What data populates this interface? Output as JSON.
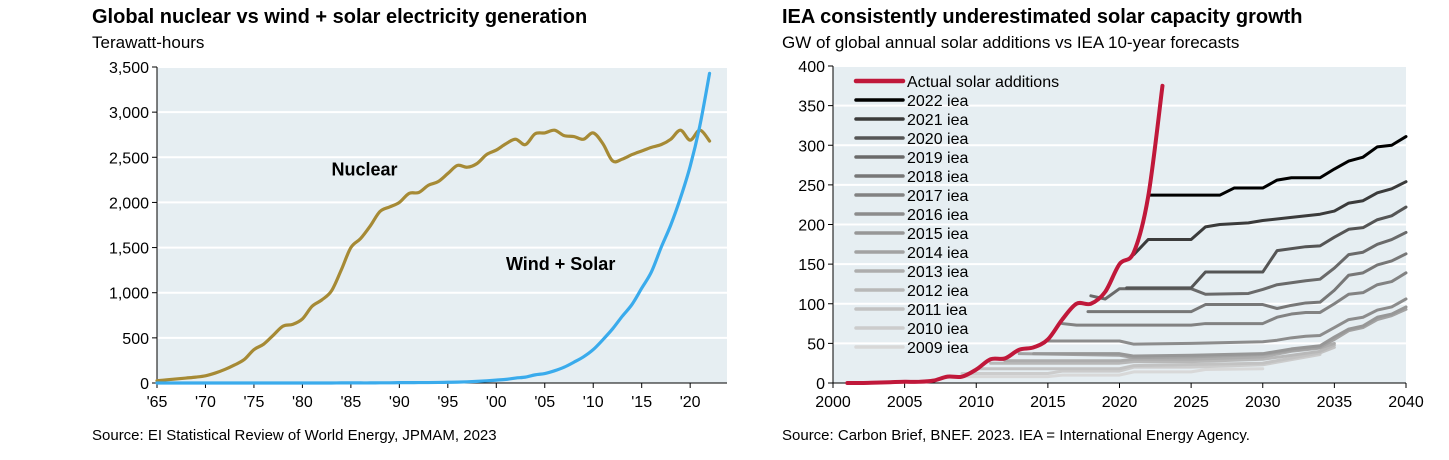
{
  "colors": {
    "plot_bg": "#e6eef2",
    "nuclear": "#a68a35",
    "wind_solar": "#3aabec",
    "actual_solar": "#c0183a"
  },
  "chart_data": [
    {
      "type": "line",
      "title": "Global nuclear vs wind + solar electricity generation",
      "subtitle": "Terawatt-hours",
      "source": "Source: EI Statistical Review of World Energy, JPMAM, 2023",
      "xlabel": "",
      "ylabel": "Terawatt-hours",
      "xlim": [
        1965,
        2023.8
      ],
      "ylim": [
        0,
        3500
      ],
      "yticks": [
        0,
        500,
        1000,
        1500,
        2000,
        2500,
        3000,
        3500
      ],
      "ytick_labels": [
        "0",
        "500",
        "1,000",
        "1,500",
        "2,000",
        "2,500",
        "3,000",
        "3,500"
      ],
      "xticks": [
        1965,
        1970,
        1975,
        1980,
        1985,
        1990,
        1995,
        2000,
        2005,
        2010,
        2015,
        2020
      ],
      "xtick_labels": [
        "'65",
        "'70",
        "'75",
        "'80",
        "'85",
        "'90",
        "'95",
        "'00",
        "'05",
        "'10",
        "'15",
        "'20"
      ],
      "grid": true,
      "annotations": [
        {
          "text": "Nuclear",
          "x": 1983,
          "y": 2300
        },
        {
          "text": "Wind + Solar",
          "x": 2001,
          "y": 1250
        }
      ],
      "x": [
        1965,
        1966,
        1967,
        1968,
        1969,
        1970,
        1971,
        1972,
        1973,
        1974,
        1975,
        1976,
        1977,
        1978,
        1979,
        1980,
        1981,
        1982,
        1983,
        1984,
        1985,
        1986,
        1987,
        1988,
        1989,
        1990,
        1991,
        1992,
        1993,
        1994,
        1995,
        1996,
        1997,
        1998,
        1999,
        2000,
        2001,
        2002,
        2003,
        2004,
        2005,
        2006,
        2007,
        2008,
        2009,
        2010,
        2011,
        2012,
        2013,
        2014,
        2015,
        2016,
        2017,
        2018,
        2019,
        2020,
        2021,
        2022
      ],
      "series": [
        {
          "name": "Nuclear",
          "color_key": "nuclear",
          "values": [
            25,
            35,
            45,
            55,
            65,
            80,
            110,
            150,
            200,
            260,
            370,
            430,
            530,
            630,
            650,
            710,
            850,
            920,
            1020,
            1250,
            1500,
            1600,
            1740,
            1900,
            1950,
            2000,
            2100,
            2110,
            2190,
            2230,
            2320,
            2410,
            2390,
            2430,
            2530,
            2580,
            2650,
            2700,
            2640,
            2760,
            2770,
            2800,
            2740,
            2730,
            2700,
            2770,
            2650,
            2460,
            2480,
            2530,
            2570,
            2610,
            2640,
            2700,
            2800,
            2690,
            2800,
            2680
          ]
        },
        {
          "name": "Wind + Solar",
          "color_key": "wind_solar",
          "values": [
            0,
            0,
            0,
            0,
            0,
            0,
            0,
            0,
            0,
            0,
            0,
            0,
            0,
            0,
            0,
            0,
            0,
            0,
            0,
            1,
            1,
            1,
            1,
            2,
            2,
            4,
            4,
            5,
            5,
            6,
            8,
            10,
            13,
            18,
            24,
            32,
            40,
            55,
            65,
            90,
            105,
            135,
            175,
            230,
            290,
            370,
            480,
            600,
            740,
            870,
            1050,
            1230,
            1500,
            1750,
            2050,
            2400,
            2850,
            3430
          ]
        }
      ]
    },
    {
      "type": "line",
      "title": "IEA consistently underestimated solar capacity growth",
      "subtitle": "GW of global annual solar additions vs IEA 10-year forecasts",
      "source": "Source: Carbon Brief, BNEF. 2023. IEA = International Energy Agency.",
      "xlabel": "",
      "ylabel": "GW",
      "xlim": [
        2000,
        2040
      ],
      "ylim": [
        0,
        400
      ],
      "yticks": [
        0,
        50,
        100,
        150,
        200,
        250,
        300,
        350,
        400
      ],
      "xticks": [
        2000,
        2005,
        2010,
        2015,
        2020,
        2025,
        2030,
        2035,
        2040
      ],
      "grid": true,
      "legend_position": "top-left",
      "series": [
        {
          "name": "Actual solar additions",
          "color": "#c0183a",
          "width": 4,
          "points": [
            [
              2001,
              0
            ],
            [
              2002,
              0
            ],
            [
              2003,
              0.5
            ],
            [
              2004,
              1
            ],
            [
              2005,
              1.5
            ],
            [
              2006,
              1.5
            ],
            [
              2007,
              3
            ],
            [
              2008,
              8
            ],
            [
              2009,
              8
            ],
            [
              2010,
              17
            ],
            [
              2011,
              30
            ],
            [
              2012,
              31
            ],
            [
              2013,
              42
            ],
            [
              2014,
              45
            ],
            [
              2015,
              55
            ],
            [
              2016,
              80
            ],
            [
              2017,
              100
            ],
            [
              2018,
              100
            ],
            [
              2019,
              115
            ],
            [
              2020,
              150
            ],
            [
              2021,
              165
            ],
            [
              2022,
              235
            ],
            [
              2023,
              375
            ]
          ]
        },
        {
          "name": "2022 iea",
          "color": "#000000",
          "width": 3,
          "points": [
            [
              2022,
              237
            ],
            [
              2027,
              237
            ],
            [
              2028,
              246
            ],
            [
              2030,
              246
            ],
            [
              2031,
              256
            ],
            [
              2032,
              259
            ],
            [
              2034,
              259
            ],
            [
              2035,
              270
            ],
            [
              2036,
              280
            ],
            [
              2037,
              285
            ],
            [
              2038,
              298
            ],
            [
              2039,
              300
            ],
            [
              2040,
              311
            ]
          ]
        },
        {
          "name": "2021 iea",
          "color": "#3b3b3b",
          "width": 3,
          "points": [
            [
              2021,
              162
            ],
            [
              2022,
              181
            ],
            [
              2025,
              181
            ],
            [
              2026,
              197
            ],
            [
              2027,
              200
            ],
            [
              2029,
              202
            ],
            [
              2030,
              205
            ],
            [
              2032,
              209
            ],
            [
              2034,
              213
            ],
            [
              2035,
              217
            ],
            [
              2036,
              227
            ],
            [
              2037,
              230
            ],
            [
              2038,
              240
            ],
            [
              2039,
              245
            ],
            [
              2040,
              254
            ]
          ]
        },
        {
          "name": "2020 iea",
          "color": "#555555",
          "width": 3,
          "points": [
            [
              2020.5,
              120
            ],
            [
              2025,
              120
            ],
            [
              2026,
              140
            ],
            [
              2030,
              140
            ],
            [
              2031,
              167
            ],
            [
              2033,
              172
            ],
            [
              2034,
              173
            ],
            [
              2035,
              184
            ],
            [
              2036,
              194
            ],
            [
              2037,
              196
            ],
            [
              2038,
              206
            ],
            [
              2039,
              211
            ],
            [
              2040,
              222
            ]
          ]
        },
        {
          "name": "2019 iea",
          "color": "#6a6a6a",
          "width": 3,
          "points": [
            [
              2018,
              110
            ],
            [
              2019,
              106
            ],
            [
              2020,
              119
            ],
            [
              2025,
              119
            ],
            [
              2026,
              112
            ],
            [
              2029,
              113
            ],
            [
              2030,
              118
            ],
            [
              2031,
              124
            ],
            [
              2033,
              129
            ],
            [
              2034,
              131
            ],
            [
              2035,
              145
            ],
            [
              2036,
              162
            ],
            [
              2037,
              165
            ],
            [
              2038,
              175
            ],
            [
              2039,
              181
            ],
            [
              2040,
              190
            ]
          ]
        },
        {
          "name": "2018 iea",
          "color": "#777777",
          "width": 3,
          "points": [
            [
              2017.8,
              90
            ],
            [
              2025,
              90
            ],
            [
              2026,
              99
            ],
            [
              2030,
              99
            ],
            [
              2031,
              94
            ],
            [
              2032,
              98
            ],
            [
              2033,
              101
            ],
            [
              2034,
              102
            ],
            [
              2035,
              117
            ],
            [
              2036,
              136
            ],
            [
              2037,
              139
            ],
            [
              2038,
              149
            ],
            [
              2039,
              154
            ],
            [
              2040,
              163
            ]
          ]
        },
        {
          "name": "2017 iea",
          "color": "#828282",
          "width": 3,
          "points": [
            [
              2016,
              75
            ],
            [
              2017,
              73
            ],
            [
              2025,
              73
            ],
            [
              2026,
              75
            ],
            [
              2030,
              75
            ],
            [
              2031,
              83
            ],
            [
              2032,
              87
            ],
            [
              2033,
              89
            ],
            [
              2034,
              89
            ],
            [
              2035,
              100
            ],
            [
              2036,
              112
            ],
            [
              2037,
              114
            ],
            [
              2038,
              124
            ],
            [
              2039,
              128
            ],
            [
              2040,
              139
            ]
          ]
        },
        {
          "name": "2016 iea",
          "color": "#8c8c8c",
          "width": 3,
          "points": [
            [
              2015,
              53
            ],
            [
              2020,
              53
            ],
            [
              2021,
              49
            ],
            [
              2025,
              50
            ],
            [
              2030,
              52
            ],
            [
              2031,
              54
            ],
            [
              2032,
              57
            ],
            [
              2033,
              59
            ],
            [
              2034,
              60
            ],
            [
              2035,
              70
            ],
            [
              2036,
              80
            ],
            [
              2037,
              83
            ],
            [
              2038,
              92
            ],
            [
              2039,
              96
            ],
            [
              2040,
              106
            ]
          ]
        },
        {
          "name": "2015 iea",
          "color": "#979797",
          "width": 3,
          "points": [
            [
              2014,
              37
            ],
            [
              2020,
              37
            ],
            [
              2021,
              34
            ],
            [
              2025,
              35
            ],
            [
              2030,
              37
            ],
            [
              2032,
              43
            ],
            [
              2034,
              47
            ],
            [
              2035,
              58
            ],
            [
              2036,
              68
            ],
            [
              2037,
              72
            ],
            [
              2038,
              83
            ],
            [
              2039,
              87
            ],
            [
              2040,
              96
            ]
          ]
        },
        {
          "name": "2014 iea",
          "color": "#a2a2a2",
          "width": 3,
          "points": [
            [
              2013,
              37
            ],
            [
              2020,
              35
            ],
            [
              2021,
              32
            ],
            [
              2025,
              33
            ],
            [
              2030,
              36
            ],
            [
              2032,
              41
            ],
            [
              2034,
              45
            ],
            [
              2035,
              55
            ],
            [
              2036,
              66
            ],
            [
              2037,
              70
            ],
            [
              2038,
              80
            ],
            [
              2039,
              85
            ],
            [
              2040,
              93
            ]
          ]
        },
        {
          "name": "2013 iea",
          "color": "#adadad",
          "width": 3,
          "points": [
            [
              2012,
              28
            ],
            [
              2020,
              28
            ],
            [
              2021,
              30
            ],
            [
              2025,
              30
            ],
            [
              2030,
              33
            ],
            [
              2032,
              40
            ],
            [
              2034,
              44
            ],
            [
              2035,
              50
            ]
          ]
        },
        {
          "name": "2012 iea",
          "color": "#b8b8b8",
          "width": 3,
          "points": [
            [
              2011,
              25
            ],
            [
              2020,
              25
            ],
            [
              2021,
              27
            ],
            [
              2025,
              27
            ],
            [
              2030,
              30
            ],
            [
              2034,
              40
            ],
            [
              2035,
              48
            ]
          ]
        },
        {
          "name": "2011 iea",
          "color": "#c2c2c2",
          "width": 3,
          "points": [
            [
              2010,
              18
            ],
            [
              2020,
              18
            ],
            [
              2021,
              22
            ],
            [
              2030,
              25
            ],
            [
              2034,
              38
            ],
            [
              2035,
              45
            ]
          ]
        },
        {
          "name": "2010 iea",
          "color": "#cccccc",
          "width": 3,
          "points": [
            [
              2009,
              12
            ],
            [
              2015,
              12
            ],
            [
              2016,
              15
            ],
            [
              2020,
              15
            ],
            [
              2021,
              20
            ],
            [
              2025,
              20
            ],
            [
              2030,
              23
            ],
            [
              2034,
              36
            ]
          ]
        },
        {
          "name": "2009 iea",
          "color": "#d8d8d8",
          "width": 3,
          "points": [
            [
              2008,
              8
            ],
            [
              2015,
              8
            ],
            [
              2016,
              10
            ],
            [
              2020,
              10
            ],
            [
              2021,
              14
            ],
            [
              2025,
              14
            ],
            [
              2026,
              17
            ],
            [
              2030,
              18
            ]
          ]
        }
      ]
    }
  ]
}
